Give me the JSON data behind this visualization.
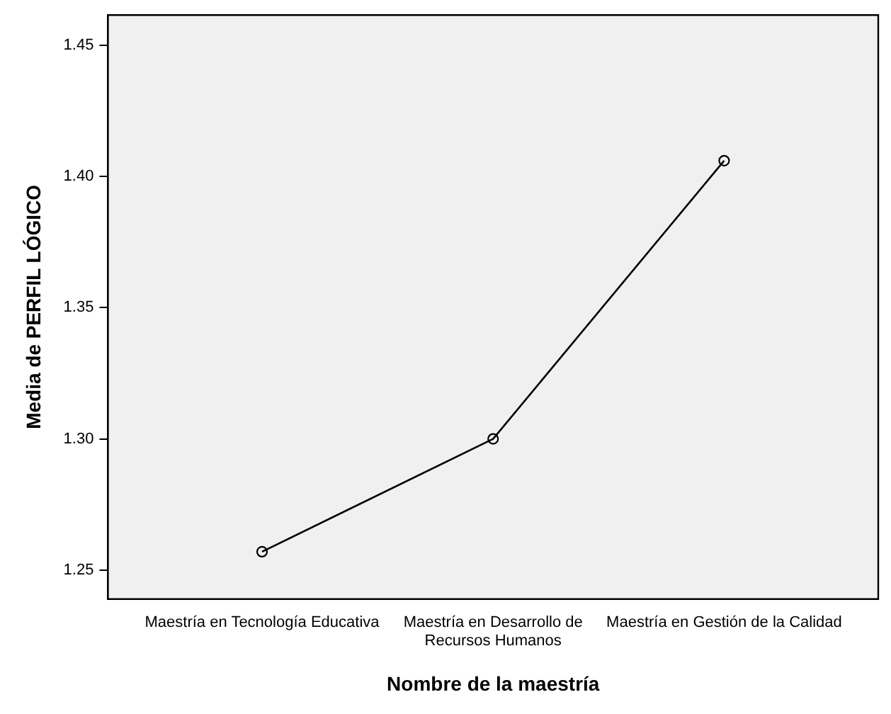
{
  "chart_data": {
    "type": "line",
    "xlabel": "Nombre de la maestría",
    "ylabel": "Media de PERFIL LÓGICO",
    "categories": [
      "Maestría en Tecnología Educativa",
      "Maestría en Desarrollo de Recursos Humanos",
      "Maestría en Gestión de la Calidad"
    ],
    "series": [
      {
        "color": "#000000",
        "values": [
          1.257,
          1.3,
          1.406
        ]
      }
    ],
    "ylim": [
      1.239,
      1.4615
    ],
    "yticks": [
      {
        "value": 1.25,
        "label": "1.25"
      },
      {
        "value": 1.3,
        "label": "1.30"
      },
      {
        "value": 1.35,
        "label": "1.35"
      },
      {
        "value": 1.4,
        "label": "1.40"
      },
      {
        "value": 1.45,
        "label": "1.45"
      }
    ],
    "grid": false,
    "legend": false,
    "marker": "circle",
    "line_style": "solid"
  }
}
